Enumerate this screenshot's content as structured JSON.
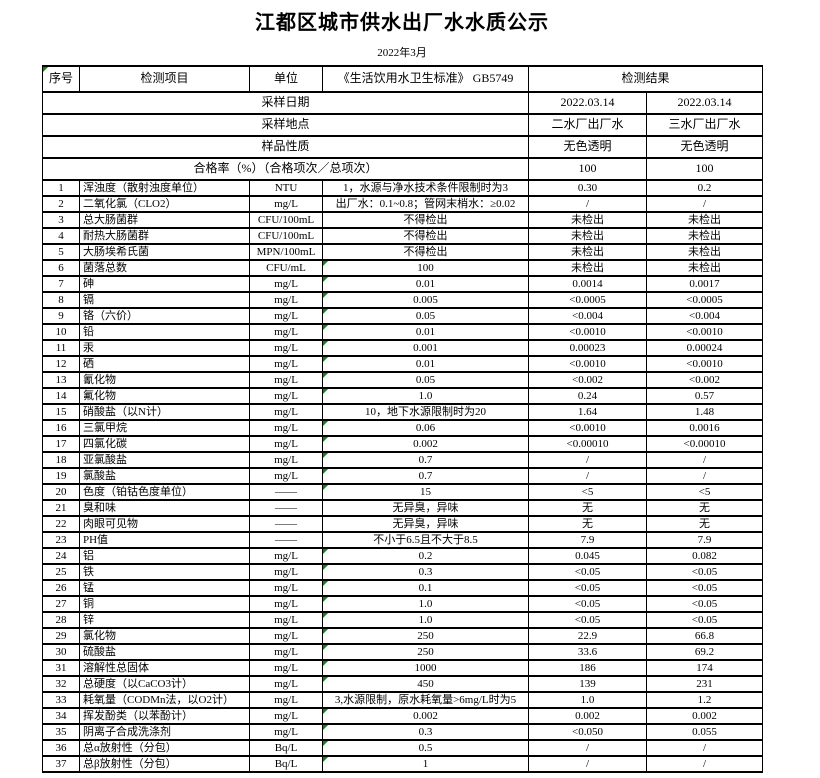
{
  "page": {
    "title": "江都区城市供水出厂水水质公示",
    "subtitle": "2022年3月"
  },
  "info_rows": [
    {
      "label": "采样日期",
      "plant2": "2022.03.14",
      "plant3": "2022.03.14"
    },
    {
      "label": "采样地点",
      "plant2": "二水厂出厂水",
      "plant3": "三水厂出厂水"
    },
    {
      "label": "样品性质",
      "plant2": "无色透明",
      "plant3": "无色透明"
    },
    {
      "label": "合格率（%）（合格项次／总项次）",
      "plant2": "100",
      "plant3": "100"
    }
  ],
  "columns": {
    "no": "序号",
    "item": "检测项目",
    "unit": "单位",
    "standard": "《生活饮用水卫生标准》 GB5749",
    "result": "检测结果"
  },
  "rows": [
    {
      "no": "1",
      "item": "浑浊度（散射浊度单位）",
      "unit": "NTU",
      "standard": "1，水源与净水技术条件限制时为3",
      "r1": "0.30",
      "r2": "0.2",
      "mark": false
    },
    {
      "no": "2",
      "item": "二氧化氯（CLO2）",
      "unit": "mg/L",
      "standard": "出厂水：0.1~0.8；管网末梢水：≥0.02",
      "r1": "/",
      "r2": "/",
      "mark": false
    },
    {
      "no": "3",
      "item": "总大肠菌群",
      "unit": "CFU/100mL",
      "standard": "不得检出",
      "r1": "未检出",
      "r2": "未检出",
      "mark": false
    },
    {
      "no": "4",
      "item": "耐热大肠菌群",
      "unit": "CFU/100mL",
      "standard": "不得检出",
      "r1": "未检出",
      "r2": "未检出",
      "mark": false
    },
    {
      "no": "5",
      "item": "大肠埃希氏菌",
      "unit": "MPN/100mL",
      "standard": "不得检出",
      "r1": "未检出",
      "r2": "未检出",
      "mark": false
    },
    {
      "no": "6",
      "item": "菌落总数",
      "unit": "CFU/mL",
      "standard": "100",
      "r1": "未检出",
      "r2": "未检出",
      "mark": true
    },
    {
      "no": "7",
      "item": "砷",
      "unit": "mg/L",
      "standard": "0.01",
      "r1": "0.0014",
      "r2": "0.0017",
      "mark": true
    },
    {
      "no": "8",
      "item": "镉",
      "unit": "mg/L",
      "standard": "0.005",
      "r1": "<0.0005",
      "r2": "<0.0005",
      "mark": true
    },
    {
      "no": "9",
      "item": "铬（六价）",
      "unit": "mg/L",
      "standard": "0.05",
      "r1": "<0.004",
      "r2": "<0.004",
      "mark": true
    },
    {
      "no": "10",
      "item": "铅",
      "unit": "mg/L",
      "standard": "0.01",
      "r1": "<0.0010",
      "r2": "<0.0010",
      "mark": true
    },
    {
      "no": "11",
      "item": "汞",
      "unit": "mg/L",
      "standard": "0.001",
      "r1": "0.00023",
      "r2": "0.00024",
      "mark": true
    },
    {
      "no": "12",
      "item": "硒",
      "unit": "mg/L",
      "standard": "0.01",
      "r1": "<0.0010",
      "r2": "<0.0010",
      "mark": true
    },
    {
      "no": "13",
      "item": "氰化物",
      "unit": "mg/L",
      "standard": "0.05",
      "r1": "<0.002",
      "r2": "<0.002",
      "mark": true
    },
    {
      "no": "14",
      "item": "氟化物",
      "unit": "mg/L",
      "standard": "1.0",
      "r1": "0.24",
      "r2": "0.57",
      "mark": true
    },
    {
      "no": "15",
      "item": "硝酸盐（以N计）",
      "unit": "mg/L",
      "standard": "10，地下水源限制时为20",
      "r1": "1.64",
      "r2": "1.48",
      "mark": false
    },
    {
      "no": "16",
      "item": "三氯甲烷",
      "unit": "mg/L",
      "standard": "0.06",
      "r1": "<0.0010",
      "r2": "0.0016",
      "mark": true
    },
    {
      "no": "17",
      "item": "四氯化碳",
      "unit": "mg/L",
      "standard": "0.002",
      "r1": "<0.00010",
      "r2": "<0.00010",
      "mark": true
    },
    {
      "no": "18",
      "item": "亚氯酸盐",
      "unit": "mg/L",
      "standard": "0.7",
      "r1": "/",
      "r2": "/",
      "mark": true
    },
    {
      "no": "19",
      "item": "氯酸盐",
      "unit": "mg/L",
      "standard": "0.7",
      "r1": "/",
      "r2": "/",
      "mark": true
    },
    {
      "no": "20",
      "item": "色度（铂钴色度单位）",
      "unit": "——",
      "standard": "15",
      "r1": "<5",
      "r2": "<5",
      "mark": true
    },
    {
      "no": "21",
      "item": "臭和味",
      "unit": "——",
      "standard": "无异臭，异味",
      "r1": "无",
      "r2": "无",
      "mark": false
    },
    {
      "no": "22",
      "item": "肉眼可见物",
      "unit": "——",
      "standard": "无异臭，异味",
      "r1": "无",
      "r2": "无",
      "mark": false
    },
    {
      "no": "23",
      "item": "PH值",
      "unit": "——",
      "standard": "不小于6.5且不大于8.5",
      "r1": "7.9",
      "r2": "7.9",
      "mark": false
    },
    {
      "no": "24",
      "item": "铝",
      "unit": "mg/L",
      "standard": "0.2",
      "r1": "0.045",
      "r2": "0.082",
      "mark": true
    },
    {
      "no": "25",
      "item": "铁",
      "unit": "mg/L",
      "standard": "0.3",
      "r1": "<0.05",
      "r2": "<0.05",
      "mark": true
    },
    {
      "no": "26",
      "item": "锰",
      "unit": "mg/L",
      "standard": "0.1",
      "r1": "<0.05",
      "r2": "<0.05",
      "mark": true
    },
    {
      "no": "27",
      "item": "铜",
      "unit": "mg/L",
      "standard": "1.0",
      "r1": "<0.05",
      "r2": "<0.05",
      "mark": true
    },
    {
      "no": "28",
      "item": "锌",
      "unit": "mg/L",
      "standard": "1.0",
      "r1": "<0.05",
      "r2": "<0.05",
      "mark": true
    },
    {
      "no": "29",
      "item": "氯化物",
      "unit": "mg/L",
      "standard": "250",
      "r1": "22.9",
      "r2": "66.8",
      "mark": true
    },
    {
      "no": "30",
      "item": "硫酸盐",
      "unit": "mg/L",
      "standard": "250",
      "r1": "33.6",
      "r2": "69.2",
      "mark": true
    },
    {
      "no": "31",
      "item": "溶解性总固体",
      "unit": "mg/L",
      "standard": "1000",
      "r1": "186",
      "r2": "174",
      "mark": true
    },
    {
      "no": "32",
      "item": "总硬度（以CaCO3计）",
      "unit": "mg/L",
      "standard": "450",
      "r1": "139",
      "r2": "231",
      "mark": true
    },
    {
      "no": "33",
      "item": "耗氧量（CODMn法，以O2计）",
      "unit": "mg/L",
      "standard": "3,水源限制，原水耗氧量>6mg/L时为5",
      "r1": "1.0",
      "r2": "1.2",
      "mark": false
    },
    {
      "no": "34",
      "item": "挥发酚类（以苯酚计）",
      "unit": "mg/L",
      "standard": "0.002",
      "r1": "0.002",
      "r2": "0.002",
      "mark": true
    },
    {
      "no": "35",
      "item": "阴离子合成洗涤剂",
      "unit": "mg/L",
      "standard": "0.3",
      "r1": "<0.050",
      "r2": "0.055",
      "mark": true
    },
    {
      "no": "36",
      "item": "总α放射性（分包）",
      "unit": "Bq/L",
      "standard": "0.5",
      "r1": "/",
      "r2": "/",
      "mark": true
    },
    {
      "no": "37",
      "item": "总β放射性（分包）",
      "unit": "Bq/L",
      "standard": "1",
      "r1": "/",
      "r2": "/",
      "mark": true
    }
  ],
  "colors": {
    "border": "#000000",
    "comment_mark": "#0c8a0c",
    "text": "#000000"
  }
}
